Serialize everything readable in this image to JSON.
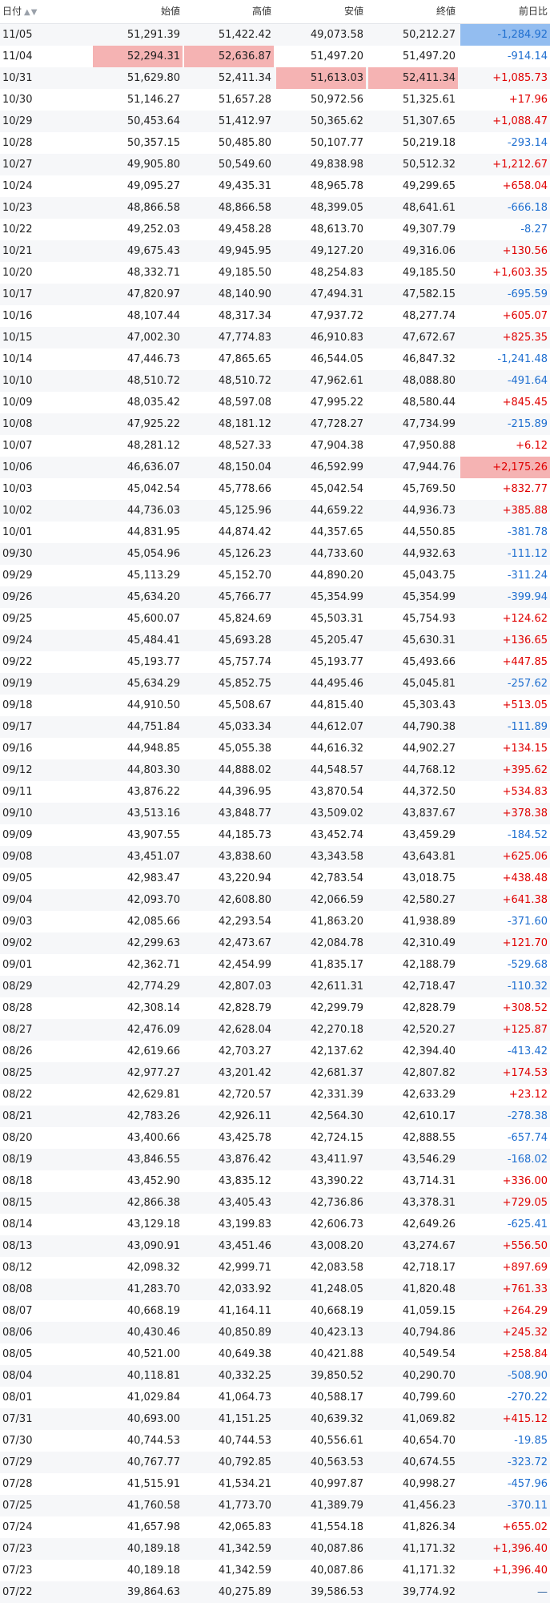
{
  "header": {
    "date": "日付",
    "open": "始値",
    "high": "高値",
    "low": "安値",
    "close": "終値",
    "change": "前日比",
    "sort_glyph": "▲▼"
  },
  "colors": {
    "up": "#e00000",
    "down": "#1f6fd0",
    "highlight_high": "#f5b3b3",
    "highlight_low": "#93bdf0"
  },
  "rows": [
    [
      "11/05",
      "51,291.39",
      "51,422.42",
      "49,073.58",
      "50,212.27",
      "-1,284.92"
    ],
    [
      "11/04",
      "52,294.31",
      "52,636.87",
      "51,497.20",
      "51,497.20",
      "-914.14"
    ],
    [
      "10/31",
      "51,629.80",
      "52,411.34",
      "51,613.03",
      "52,411.34",
      "+1,085.73"
    ],
    [
      "10/30",
      "51,146.27",
      "51,657.28",
      "50,972.56",
      "51,325.61",
      "+17.96"
    ],
    [
      "10/29",
      "50,453.64",
      "51,412.97",
      "50,365.62",
      "51,307.65",
      "+1,088.47"
    ],
    [
      "10/28",
      "50,357.15",
      "50,485.80",
      "50,107.77",
      "50,219.18",
      "-293.14"
    ],
    [
      "10/27",
      "49,905.80",
      "50,549.60",
      "49,838.98",
      "50,512.32",
      "+1,212.67"
    ],
    [
      "10/24",
      "49,095.27",
      "49,435.31",
      "48,965.78",
      "49,299.65",
      "+658.04"
    ],
    [
      "10/23",
      "48,866.58",
      "48,866.58",
      "48,399.05",
      "48,641.61",
      "-666.18"
    ],
    [
      "10/22",
      "49,252.03",
      "49,458.28",
      "48,613.70",
      "49,307.79",
      "-8.27"
    ],
    [
      "10/21",
      "49,675.43",
      "49,945.95",
      "49,127.20",
      "49,316.06",
      "+130.56"
    ],
    [
      "10/20",
      "48,332.71",
      "49,185.50",
      "48,254.83",
      "49,185.50",
      "+1,603.35"
    ],
    [
      "10/17",
      "47,820.97",
      "48,140.90",
      "47,494.31",
      "47,582.15",
      "-695.59"
    ],
    [
      "10/16",
      "48,107.44",
      "48,317.34",
      "47,937.72",
      "48,277.74",
      "+605.07"
    ],
    [
      "10/15",
      "47,002.30",
      "47,774.83",
      "46,910.83",
      "47,672.67",
      "+825.35"
    ],
    [
      "10/14",
      "47,446.73",
      "47,865.65",
      "46,544.05",
      "46,847.32",
      "-1,241.48"
    ],
    [
      "10/10",
      "48,510.72",
      "48,510.72",
      "47,962.61",
      "48,088.80",
      "-491.64"
    ],
    [
      "10/09",
      "48,035.42",
      "48,597.08",
      "47,995.22",
      "48,580.44",
      "+845.45"
    ],
    [
      "10/08",
      "47,925.22",
      "48,181.12",
      "47,728.27",
      "47,734.99",
      "-215.89"
    ],
    [
      "10/07",
      "48,281.12",
      "48,527.33",
      "47,904.38",
      "47,950.88",
      "+6.12"
    ],
    [
      "10/06",
      "46,636.07",
      "48,150.04",
      "46,592.99",
      "47,944.76",
      "+2,175.26"
    ],
    [
      "10/03",
      "45,042.54",
      "45,778.66",
      "45,042.54",
      "45,769.50",
      "+832.77"
    ],
    [
      "10/02",
      "44,736.03",
      "45,125.96",
      "44,659.22",
      "44,936.73",
      "+385.88"
    ],
    [
      "10/01",
      "44,831.95",
      "44,874.42",
      "44,357.65",
      "44,550.85",
      "-381.78"
    ],
    [
      "09/30",
      "45,054.96",
      "45,126.23",
      "44,733.60",
      "44,932.63",
      "-111.12"
    ],
    [
      "09/29",
      "45,113.29",
      "45,152.70",
      "44,890.20",
      "45,043.75",
      "-311.24"
    ],
    [
      "09/26",
      "45,634.20",
      "45,766.77",
      "45,354.99",
      "45,354.99",
      "-399.94"
    ],
    [
      "09/25",
      "45,600.07",
      "45,824.69",
      "45,503.31",
      "45,754.93",
      "+124.62"
    ],
    [
      "09/24",
      "45,484.41",
      "45,693.28",
      "45,205.47",
      "45,630.31",
      "+136.65"
    ],
    [
      "09/22",
      "45,193.77",
      "45,757.74",
      "45,193.77",
      "45,493.66",
      "+447.85"
    ],
    [
      "09/19",
      "45,634.29",
      "45,852.75",
      "44,495.46",
      "45,045.81",
      "-257.62"
    ],
    [
      "09/18",
      "44,910.50",
      "45,508.67",
      "44,815.40",
      "45,303.43",
      "+513.05"
    ],
    [
      "09/17",
      "44,751.84",
      "45,033.34",
      "44,612.07",
      "44,790.38",
      "-111.89"
    ],
    [
      "09/16",
      "44,948.85",
      "45,055.38",
      "44,616.32",
      "44,902.27",
      "+134.15"
    ],
    [
      "09/12",
      "44,803.30",
      "44,888.02",
      "44,548.57",
      "44,768.12",
      "+395.62"
    ],
    [
      "09/11",
      "43,876.22",
      "44,396.95",
      "43,870.54",
      "44,372.50",
      "+534.83"
    ],
    [
      "09/10",
      "43,513.16",
      "43,848.77",
      "43,509.02",
      "43,837.67",
      "+378.38"
    ],
    [
      "09/09",
      "43,907.55",
      "44,185.73",
      "43,452.74",
      "43,459.29",
      "-184.52"
    ],
    [
      "09/08",
      "43,451.07",
      "43,838.60",
      "43,343.58",
      "43,643.81",
      "+625.06"
    ],
    [
      "09/05",
      "42,983.47",
      "43,220.94",
      "42,783.54",
      "43,018.75",
      "+438.48"
    ],
    [
      "09/04",
      "42,093.70",
      "42,608.80",
      "42,066.59",
      "42,580.27",
      "+641.38"
    ],
    [
      "09/03",
      "42,085.66",
      "42,293.54",
      "41,863.20",
      "41,938.89",
      "-371.60"
    ],
    [
      "09/02",
      "42,299.63",
      "42,473.67",
      "42,084.78",
      "42,310.49",
      "+121.70"
    ],
    [
      "09/01",
      "42,362.71",
      "42,454.99",
      "41,835.17",
      "42,188.79",
      "-529.68"
    ],
    [
      "08/29",
      "42,774.29",
      "42,807.03",
      "42,611.31",
      "42,718.47",
      "-110.32"
    ],
    [
      "08/28",
      "42,308.14",
      "42,828.79",
      "42,299.79",
      "42,828.79",
      "+308.52"
    ],
    [
      "08/27",
      "42,476.09",
      "42,628.04",
      "42,270.18",
      "42,520.27",
      "+125.87"
    ],
    [
      "08/26",
      "42,619.66",
      "42,703.27",
      "42,137.62",
      "42,394.40",
      "-413.42"
    ],
    [
      "08/25",
      "42,977.27",
      "43,201.42",
      "42,681.37",
      "42,807.82",
      "+174.53"
    ],
    [
      "08/22",
      "42,629.81",
      "42,720.57",
      "42,331.39",
      "42,633.29",
      "+23.12"
    ],
    [
      "08/21",
      "42,783.26",
      "42,926.11",
      "42,564.30",
      "42,610.17",
      "-278.38"
    ],
    [
      "08/20",
      "43,400.66",
      "43,425.78",
      "42,724.15",
      "42,888.55",
      "-657.74"
    ],
    [
      "08/19",
      "43,846.55",
      "43,876.42",
      "43,411.97",
      "43,546.29",
      "-168.02"
    ],
    [
      "08/18",
      "43,452.90",
      "43,835.12",
      "43,390.22",
      "43,714.31",
      "+336.00"
    ],
    [
      "08/15",
      "42,866.38",
      "43,405.43",
      "42,736.86",
      "43,378.31",
      "+729.05"
    ],
    [
      "08/14",
      "43,129.18",
      "43,199.83",
      "42,606.73",
      "42,649.26",
      "-625.41"
    ],
    [
      "08/13",
      "43,090.91",
      "43,451.46",
      "43,008.20",
      "43,274.67",
      "+556.50"
    ],
    [
      "08/12",
      "42,098.32",
      "42,999.71",
      "42,083.58",
      "42,718.17",
      "+897.69"
    ],
    [
      "08/08",
      "41,283.70",
      "42,033.92",
      "41,248.05",
      "41,820.48",
      "+761.33"
    ],
    [
      "08/07",
      "40,668.19",
      "41,164.11",
      "40,668.19",
      "41,059.15",
      "+264.29"
    ],
    [
      "08/06",
      "40,430.46",
      "40,850.89",
      "40,423.13",
      "40,794.86",
      "+245.32"
    ],
    [
      "08/05",
      "40,521.00",
      "40,649.38",
      "40,421.88",
      "40,549.54",
      "+258.84"
    ],
    [
      "08/04",
      "40,118.81",
      "40,332.25",
      "39,850.52",
      "40,290.70",
      "-508.90"
    ],
    [
      "08/01",
      "41,029.84",
      "41,064.73",
      "40,588.17",
      "40,799.60",
      "-270.22"
    ],
    [
      "07/31",
      "40,693.00",
      "41,151.25",
      "40,639.32",
      "41,069.82",
      "+415.12"
    ],
    [
      "07/30",
      "40,744.53",
      "40,744.53",
      "40,556.61",
      "40,654.70",
      "-19.85"
    ],
    [
      "07/29",
      "40,767.77",
      "40,792.85",
      "40,563.53",
      "40,674.55",
      "-323.72"
    ],
    [
      "07/28",
      "41,515.91",
      "41,534.21",
      "40,997.87",
      "40,998.27",
      "-457.96"
    ],
    [
      "07/25",
      "41,760.58",
      "41,773.70",
      "41,389.79",
      "41,456.23",
      "-370.11"
    ],
    [
      "07/24",
      "41,657.98",
      "42,065.83",
      "41,554.18",
      "41,826.34",
      "+655.02"
    ],
    [
      "07/23",
      "40,189.18",
      "41,342.59",
      "40,087.86",
      "41,171.32",
      "+1,396.40"
    ],
    [
      "07/23",
      "40,189.18",
      "41,342.59",
      "40,087.86",
      "41,171.32",
      "+1,396.40"
    ],
    [
      "07/22",
      "39,864.63",
      "40,275.89",
      "39,586.53",
      "39,774.92",
      "—"
    ]
  ]
}
